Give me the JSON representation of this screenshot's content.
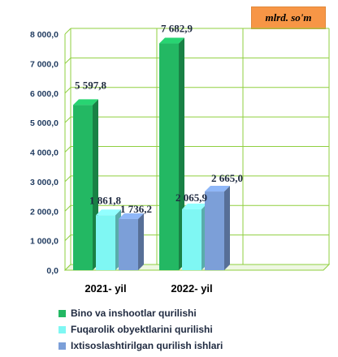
{
  "unit_label": "mlrd. so'm",
  "colors": {
    "bino": "#23b863",
    "fuqarolik": "#7ff7f3",
    "ixtisos": "#7c9fd8",
    "grid": "#8fcf3f",
    "text": "#1f3a5f"
  },
  "chart_data": {
    "type": "bar",
    "categories": [
      "2021- yil",
      "2022- yil"
    ],
    "series": [
      {
        "name": "Bino va inshootlar qurilishi",
        "values": [
          5597.8,
          7682.9
        ],
        "labels": [
          "5 597,8",
          "7 682,9"
        ]
      },
      {
        "name": "Fuqarolik obyektlarini qurilishi",
        "values": [
          1861.8,
          2065.9
        ],
        "labels": [
          "1 861,8",
          "2 065,9"
        ]
      },
      {
        "name": "Ixtisoslashtirilgan qurilish ishlari",
        "values": [
          1736.2,
          2665.0
        ],
        "labels": [
          "1 736,2",
          "2 665,0"
        ]
      }
    ],
    "ylim": [
      0,
      8000
    ],
    "yticks": [
      0,
      1000,
      2000,
      3000,
      4000,
      5000,
      6000,
      7000,
      8000
    ],
    "ytick_labels": [
      "0,0",
      "1 000,0",
      "2 000,0",
      "3 000,0",
      "4 000,0",
      "5 000,0",
      "6 000,0",
      "7 000,0",
      "8 000,0"
    ],
    "grid": true,
    "legend_position": "bottom"
  }
}
